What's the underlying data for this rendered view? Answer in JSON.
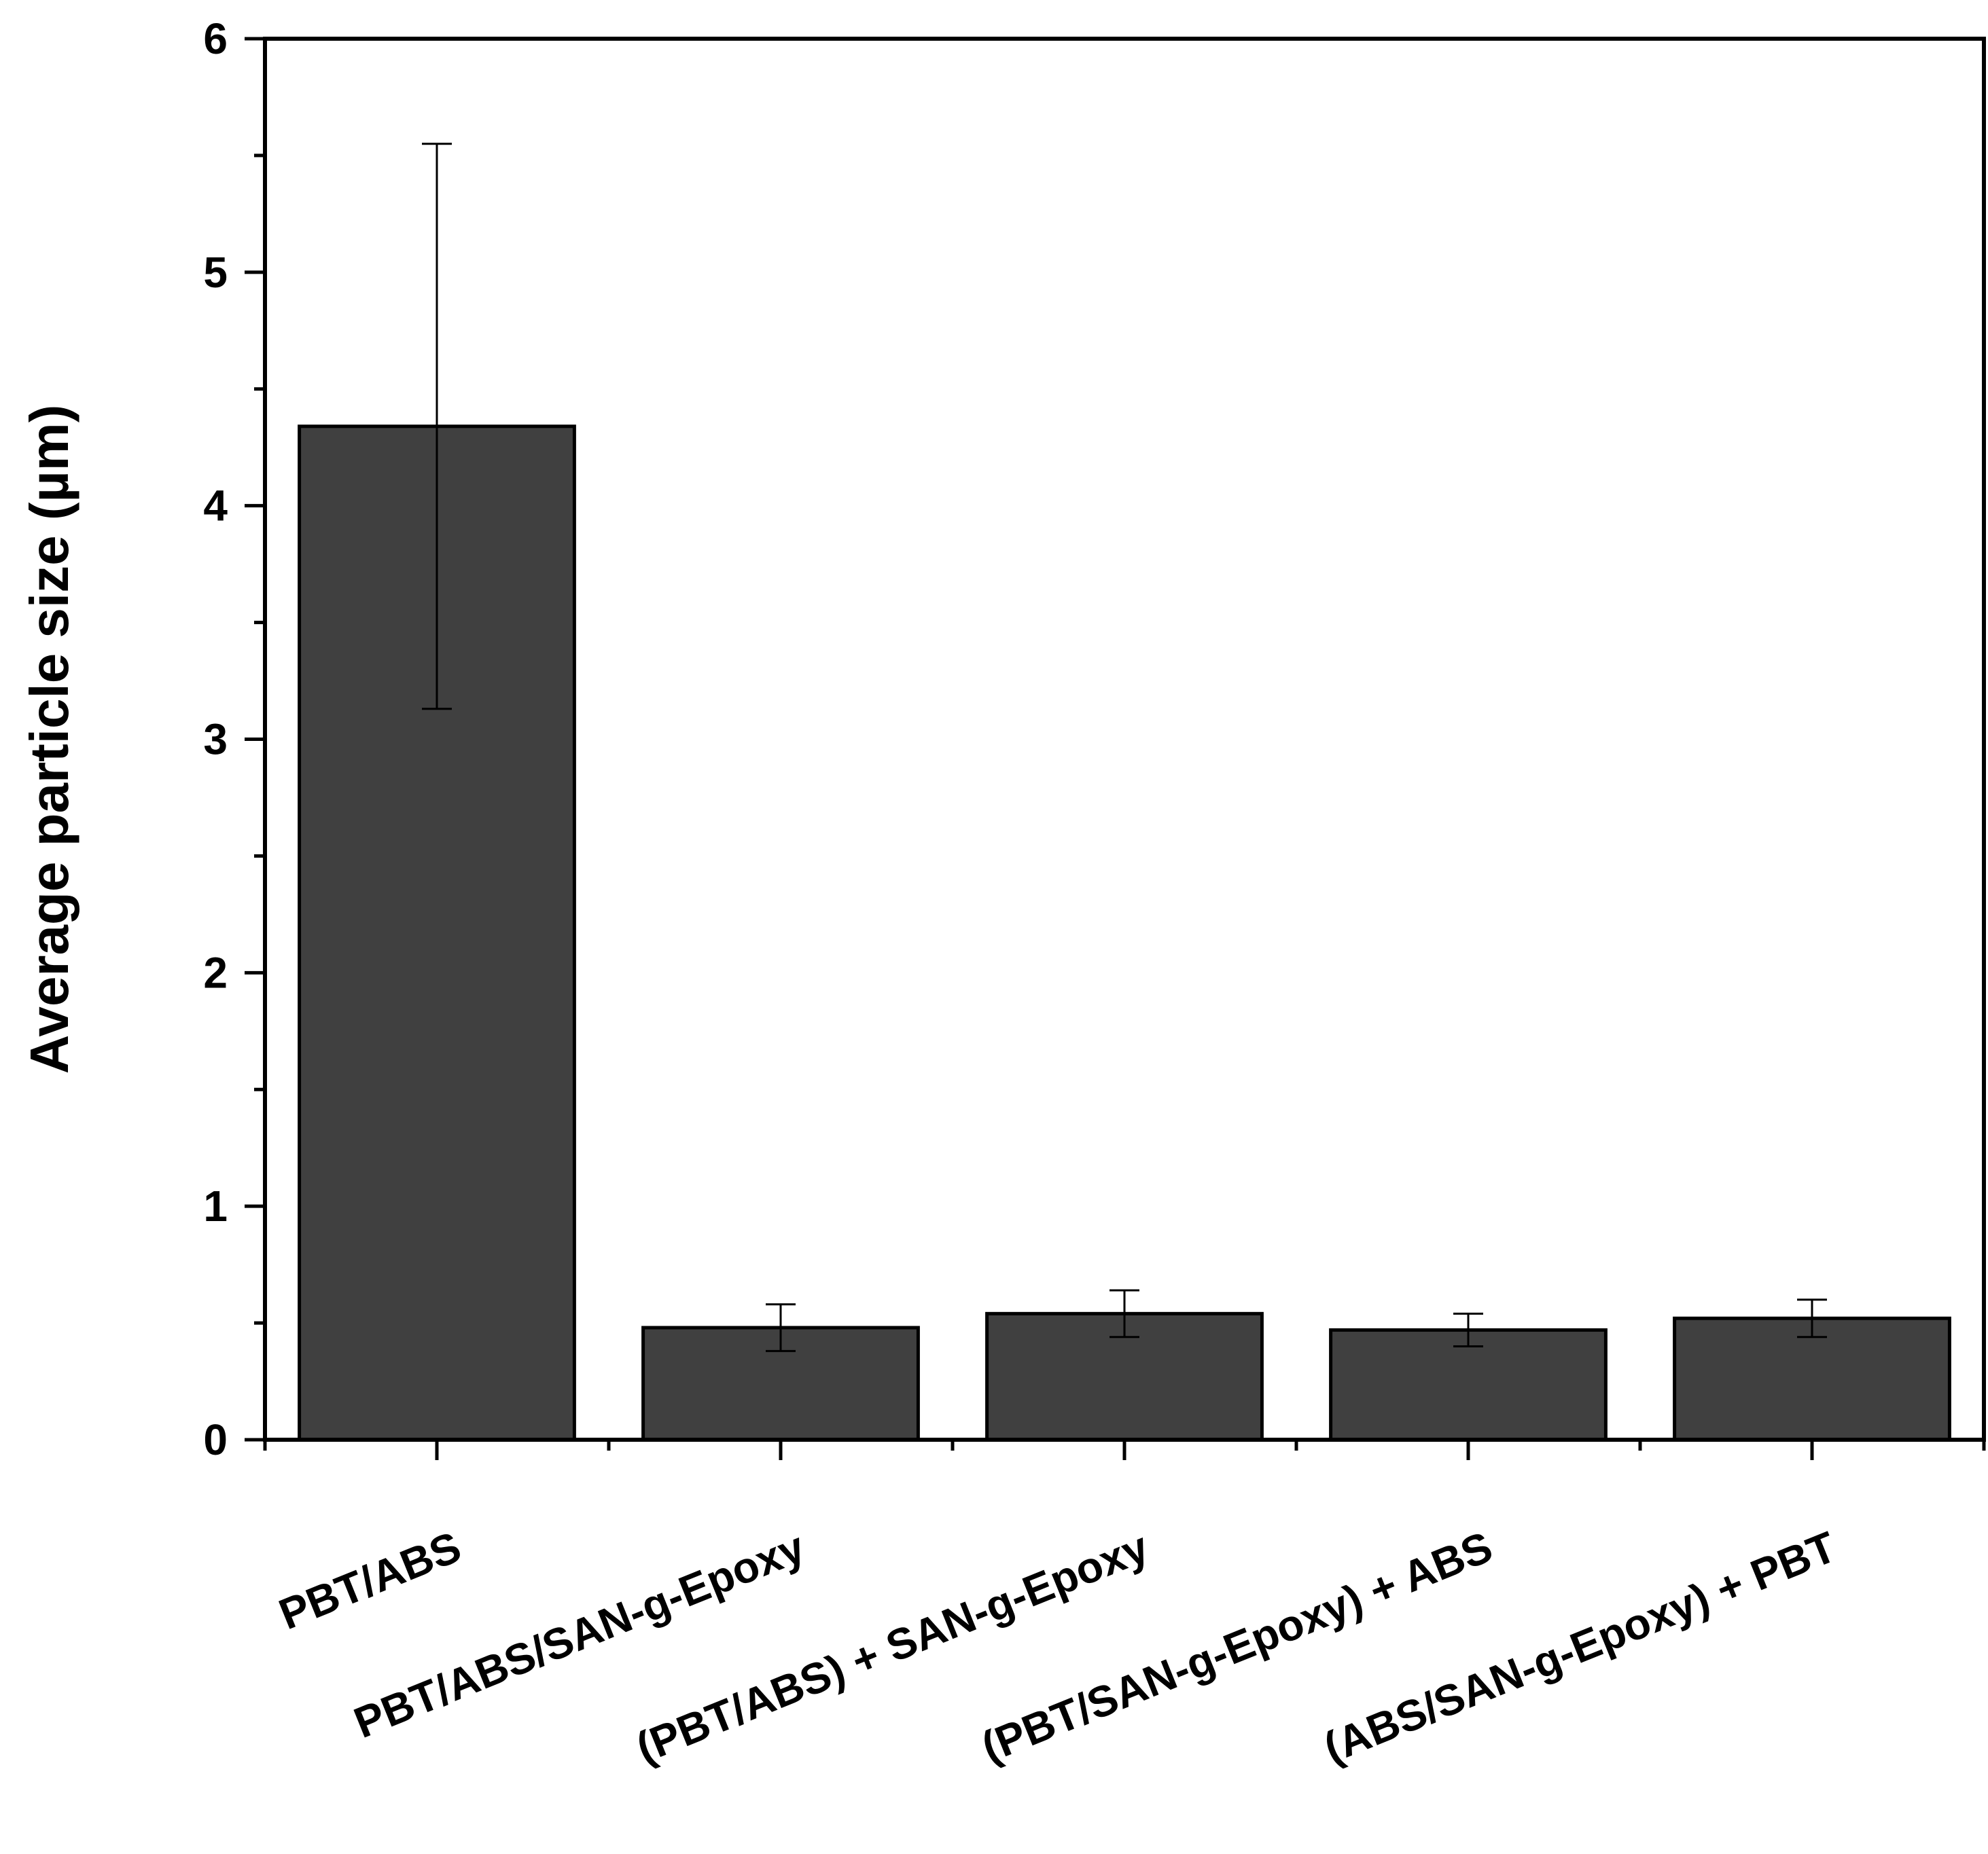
{
  "chart_data": {
    "type": "bar",
    "title": "",
    "xlabel": "",
    "ylabel": "Average particle size (µm)",
    "ylim": [
      0,
      6
    ],
    "yticks": [
      0,
      1,
      2,
      3,
      4,
      5,
      6
    ],
    "grid": false,
    "legend": "none",
    "categories": [
      "PBT/ABS",
      "PBT/ABS/SAN-g-Epoxy",
      "(PBT/ABS) + SAN-g-Epoxy",
      "(PBT/SAN-g-Epoxy) + ABS",
      "(ABS/SAN-g-Epoxy) + PBT"
    ],
    "values": [
      4.34,
      0.48,
      0.54,
      0.47,
      0.52
    ],
    "errors": [
      1.21,
      0.1,
      0.1,
      0.07,
      0.08
    ],
    "colors": {
      "bar_fill": "#404040",
      "bar_stroke": "#000000",
      "axis": "#000000"
    }
  }
}
